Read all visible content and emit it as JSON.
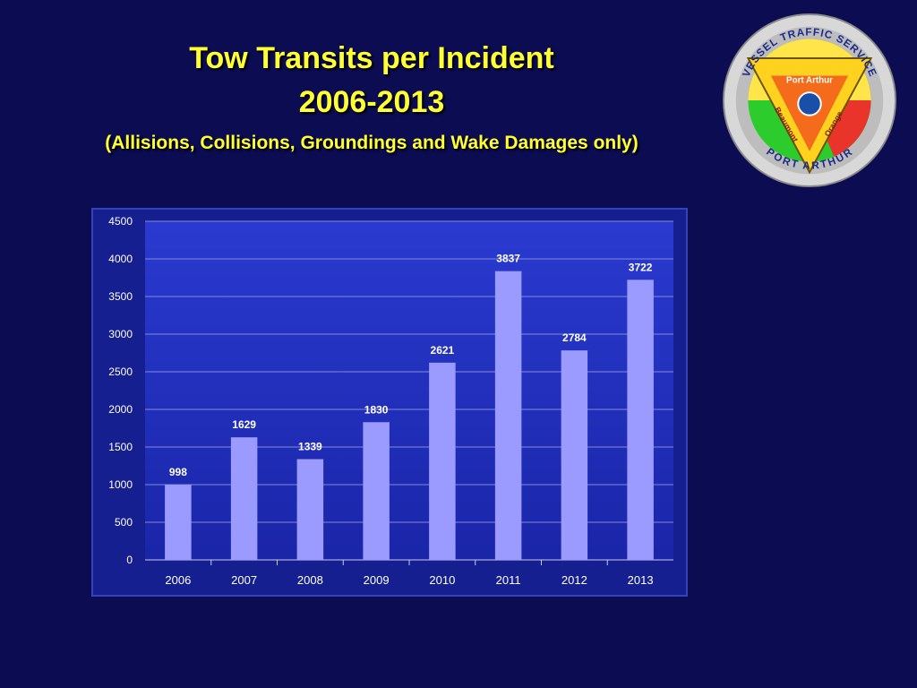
{
  "slide": {
    "title_line1": "Tow Transits per Incident",
    "title_line2": "2006-2013",
    "subtitle": "(Allisions, Collisions, Groundings and Wake Damages only)"
  },
  "logo": {
    "top_text": "VESSEL TRAFFIC SERVICE",
    "bottom_text": "PORT ARTHUR",
    "label_top": "Port Arthur",
    "label_left": "Beaumont",
    "label_right": "Orange"
  },
  "colors": {
    "background": "#0b0c52",
    "title": "#ffff33",
    "plot_area": "#1d2ab8",
    "bar": "#9b9bff"
  },
  "chart_data": {
    "type": "bar",
    "categories": [
      "2006",
      "2007",
      "2008",
      "2009",
      "2010",
      "2011",
      "2012",
      "2013"
    ],
    "values": [
      998,
      1629,
      1339,
      1830,
      2621,
      3837,
      2784,
      3722
    ],
    "data_labels": [
      "998",
      "1629",
      "1339",
      "1830",
      "2621",
      "3837",
      "2784",
      "3722"
    ],
    "title": "",
    "xlabel": "",
    "ylabel": "",
    "ylim": [
      0,
      4500
    ],
    "yticks": [
      "0",
      "500",
      "1000",
      "1500",
      "2000",
      "2500",
      "3000",
      "3500",
      "4000",
      "4500"
    ],
    "grid": true,
    "legend": "none"
  }
}
